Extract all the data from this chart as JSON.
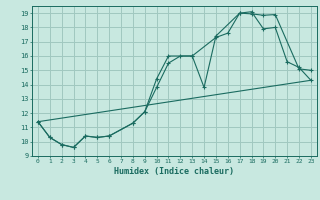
{
  "background_color": "#c8e8e0",
  "grid_color": "#a0c8c0",
  "line_color": "#1a6b60",
  "marker": "+",
  "xlabel": "Humidex (Indice chaleur)",
  "xlim": [
    -0.5,
    23.5
  ],
  "ylim": [
    9,
    19.5
  ],
  "xticks": [
    0,
    1,
    2,
    3,
    4,
    5,
    6,
    7,
    8,
    9,
    10,
    11,
    12,
    13,
    14,
    15,
    16,
    17,
    18,
    19,
    20,
    21,
    22,
    23
  ],
  "yticks": [
    9,
    10,
    11,
    12,
    13,
    14,
    15,
    16,
    17,
    18,
    19
  ],
  "series": [
    {
      "x": [
        0,
        1,
        2,
        3,
        4,
        5,
        6,
        8,
        9,
        10,
        11,
        12,
        13,
        15,
        16,
        17,
        18,
        19,
        20,
        22,
        23
      ],
      "y": [
        11.4,
        10.3,
        9.8,
        9.6,
        10.4,
        10.3,
        10.4,
        11.3,
        12.1,
        13.8,
        15.5,
        16.0,
        16.0,
        17.3,
        17.6,
        19.0,
        18.95,
        18.85,
        18.9,
        15.1,
        15.0
      ]
    },
    {
      "x": [
        0,
        1,
        2,
        3,
        4,
        5,
        6,
        8,
        9,
        10,
        11,
        13,
        14,
        15,
        17,
        18,
        19,
        20,
        21,
        22,
        23
      ],
      "y": [
        11.4,
        10.3,
        9.8,
        9.6,
        10.4,
        10.3,
        10.4,
        11.3,
        12.1,
        14.4,
        16.0,
        16.0,
        13.8,
        17.4,
        19.0,
        19.1,
        17.9,
        18.0,
        15.6,
        15.2,
        14.3
      ]
    },
    {
      "x": [
        0,
        23
      ],
      "y": [
        11.4,
        14.3
      ]
    }
  ]
}
